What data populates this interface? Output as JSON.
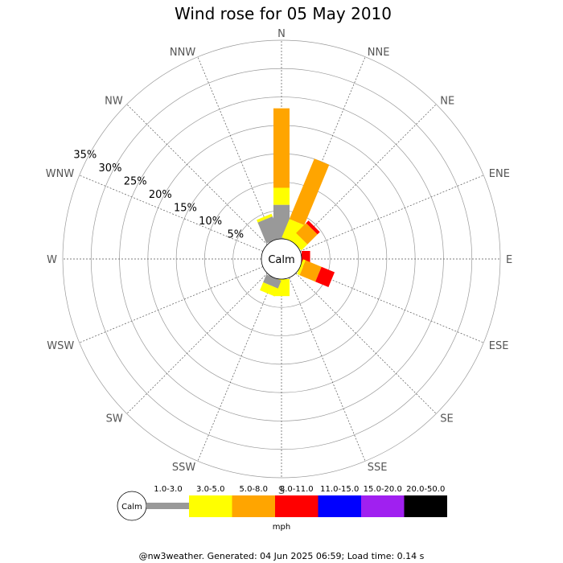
{
  "chart_data": {
    "type": "wind-rose",
    "title": "Wind rose for 05 May 2010",
    "directions": [
      "N",
      "NNE",
      "NE",
      "ENE",
      "E",
      "ESE",
      "SE",
      "SSE",
      "S",
      "SSW",
      "SW",
      "WSW",
      "W",
      "WNW",
      "NW",
      "NNW"
    ],
    "radial_ticks": [
      5,
      10,
      15,
      20,
      25,
      30,
      35
    ],
    "radial_tick_labels": [
      "5%",
      "10%",
      "15%",
      "20%",
      "25%",
      "30%",
      "35%"
    ],
    "radial_max": 35,
    "calm_label": "Calm",
    "units": "mph",
    "speed_bins": [
      {
        "label": "1.0-3.0",
        "color": "#999999"
      },
      {
        "label": "3.0-5.0",
        "color": "#ffff00"
      },
      {
        "label": "5.0-8.0",
        "color": "#ffa500"
      },
      {
        "label": "8.0-11.0",
        "color": "#ff0000"
      },
      {
        "label": "11.0-15.0",
        "color": "#0000ff"
      },
      {
        "label": "15.0-20.0",
        "color": "#a020f0"
      },
      {
        "label": "20.0-50.0",
        "color": "#000000"
      }
    ],
    "series": [
      {
        "direction": "N",
        "values": [
          6.0,
          3.0,
          14.0,
          0,
          0,
          0,
          0
        ]
      },
      {
        "direction": "NNE",
        "values": [
          0,
          3.5,
          11.5,
          0,
          0,
          0,
          0
        ]
      },
      {
        "direction": "NE",
        "values": [
          0,
          1.5,
          2.5,
          0.6,
          0,
          0,
          0
        ]
      },
      {
        "direction": "ENE",
        "values": [
          0,
          0,
          0,
          0,
          0,
          0,
          0
        ]
      },
      {
        "direction": "E",
        "values": [
          0,
          0,
          0,
          1.5,
          0,
          0,
          0
        ]
      },
      {
        "direction": "ESE",
        "values": [
          0,
          0.5,
          3.0,
          2.5,
          0,
          0,
          0
        ]
      },
      {
        "direction": "SE",
        "values": [
          0,
          0,
          0,
          0,
          0,
          0,
          0
        ]
      },
      {
        "direction": "SSE",
        "values": [
          0,
          0,
          0,
          0,
          0,
          0,
          0
        ]
      },
      {
        "direction": "S",
        "values": [
          0,
          3.0,
          0,
          0,
          0,
          0,
          0
        ]
      },
      {
        "direction": "SSW",
        "values": [
          1.5,
          1.5,
          0,
          0,
          0,
          0,
          0
        ]
      },
      {
        "direction": "SW",
        "values": [
          0,
          0,
          0,
          0,
          0,
          0,
          0
        ]
      },
      {
        "direction": "WSW",
        "values": [
          0,
          0,
          0,
          0,
          0,
          0,
          0
        ]
      },
      {
        "direction": "W",
        "values": [
          0,
          0,
          0,
          0,
          0,
          0,
          0
        ]
      },
      {
        "direction": "WNW",
        "values": [
          0,
          0,
          0,
          0,
          0,
          0,
          0
        ]
      },
      {
        "direction": "NW",
        "values": [
          0,
          0,
          0,
          0,
          0,
          0,
          0
        ]
      },
      {
        "direction": "NNW",
        "values": [
          4.0,
          0.5,
          0,
          0,
          0,
          0,
          0
        ]
      }
    ]
  },
  "footer": "@nw3weather. Generated: 04 Jun 2025 06:59; Load time: 0.14 s"
}
